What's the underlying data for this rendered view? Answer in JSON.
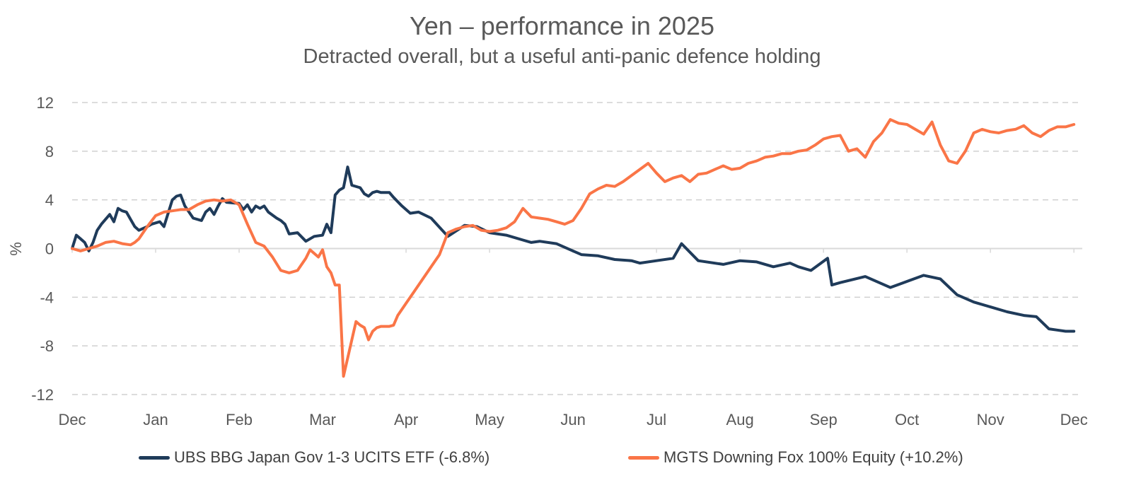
{
  "colors": {
    "ubs": "#1f3b5a",
    "mgts": "#fa7547",
    "grid": "#d0d0d0",
    "text": "#595959"
  },
  "chart_data": {
    "type": "line",
    "title": "Yen – performance in 2025",
    "subtitle": "Detracted overall, but a useful anti-panic defence holding",
    "xlabel": "",
    "ylabel": "%",
    "ylim": [
      -12,
      12
    ],
    "yticks": [
      "12",
      "8",
      "4",
      "0",
      "-4",
      "-8",
      "-12"
    ],
    "ytick_values": [
      12,
      8,
      4,
      0,
      -4,
      -8,
      -12
    ],
    "xlim": [
      0,
      12.1
    ],
    "xticks": [
      "Dec",
      "Jan",
      "Feb",
      "Mar",
      "Apr",
      "May",
      "Jun",
      "Jul",
      "Aug",
      "Sep",
      "Oct",
      "Nov",
      "Dec"
    ],
    "series": [
      {
        "name": "UBS BBG Japan Gov 1-3 UCITS ETF (-6.8%)",
        "color": "#1f3b5a",
        "x": [
          0,
          0.05,
          0.1,
          0.15,
          0.2,
          0.25,
          0.3,
          0.35,
          0.45,
          0.5,
          0.55,
          0.6,
          0.65,
          0.7,
          0.75,
          0.8,
          0.9,
          0.95,
          1.05,
          1.1,
          1.2,
          1.25,
          1.3,
          1.35,
          1.4,
          1.45,
          1.55,
          1.6,
          1.65,
          1.7,
          1.75,
          1.8,
          1.85,
          2.0,
          2.05,
          2.1,
          2.15,
          2.2,
          2.25,
          2.3,
          2.35,
          2.45,
          2.5,
          2.55,
          2.6,
          2.7,
          2.8,
          2.9,
          3.0,
          3.05,
          3.1,
          3.15,
          3.2,
          3.25,
          3.3,
          3.35,
          3.45,
          3.5,
          3.55,
          3.6,
          3.65,
          3.7,
          3.8,
          3.85,
          3.95,
          4.05,
          4.15,
          4.3,
          4.5,
          4.7,
          4.85,
          5.0,
          5.2,
          5.4,
          5.5,
          5.6,
          5.8,
          6.0,
          6.1,
          6.3,
          6.5,
          6.7,
          6.8,
          7.0,
          7.2,
          7.3,
          7.5,
          7.8,
          8.0,
          8.2,
          8.4,
          8.6,
          8.7,
          8.85,
          9.05,
          9.1,
          9.2,
          9.5,
          9.8,
          10.0,
          10.2,
          10.4,
          10.6,
          10.8,
          11.0,
          11.2,
          11.4,
          11.55,
          11.7,
          11.8,
          11.9,
          12.0
        ],
        "values": [
          0,
          1.1,
          0.8,
          0.5,
          -0.2,
          0.5,
          1.5,
          2.0,
          2.8,
          2.2,
          3.3,
          3.1,
          3.0,
          2.4,
          1.8,
          1.5,
          1.8,
          2.0,
          2.2,
          1.8,
          4.0,
          4.3,
          4.4,
          3.5,
          3.0,
          2.5,
          2.3,
          3.0,
          3.3,
          2.8,
          3.5,
          4.1,
          3.8,
          3.7,
          3.2,
          3.6,
          3.0,
          3.5,
          3.3,
          3.5,
          3.0,
          2.5,
          2.3,
          2.0,
          1.2,
          1.3,
          0.6,
          1.0,
          1.1,
          2.0,
          1.3,
          4.4,
          4.8,
          5.0,
          6.7,
          5.2,
          5.0,
          4.5,
          4.3,
          4.6,
          4.7,
          4.6,
          4.6,
          4.2,
          3.5,
          2.9,
          3.0,
          2.5,
          1.0,
          1.9,
          1.8,
          1.3,
          1.1,
          0.7,
          0.5,
          0.6,
          0.4,
          -0.2,
          -0.5,
          -0.6,
          -0.9,
          -1.0,
          -1.2,
          -1.0,
          -0.8,
          0.4,
          -1.0,
          -1.3,
          -1.0,
          -1.1,
          -1.5,
          -1.2,
          -1.5,
          -1.8,
          -0.8,
          -3.0,
          -2.8,
          -2.3,
          -3.2,
          -2.7,
          -2.2,
          -2.5,
          -3.8,
          -4.4,
          -4.8,
          -5.2,
          -5.5,
          -5.6,
          -6.6,
          -6.7,
          -6.8,
          -6.8
        ]
      },
      {
        "name": "MGTS Downing Fox 100% Equity (+10.2%)",
        "color": "#fa7547",
        "x": [
          0,
          0.1,
          0.2,
          0.3,
          0.4,
          0.5,
          0.6,
          0.7,
          0.75,
          0.8,
          0.9,
          1.0,
          1.1,
          1.2,
          1.3,
          1.4,
          1.5,
          1.6,
          1.7,
          1.8,
          1.9,
          2.0,
          2.1,
          2.2,
          2.3,
          2.4,
          2.5,
          2.6,
          2.7,
          2.8,
          2.85,
          2.95,
          3.0,
          3.05,
          3.1,
          3.15,
          3.2,
          3.25,
          3.3,
          3.35,
          3.4,
          3.45,
          3.5,
          3.55,
          3.6,
          3.65,
          3.7,
          3.75,
          3.8,
          3.85,
          3.9,
          3.95,
          4.0,
          4.1,
          4.2,
          4.3,
          4.4,
          4.5,
          4.6,
          4.7,
          4.8,
          4.9,
          5.0,
          5.1,
          5.2,
          5.3,
          5.4,
          5.5,
          5.6,
          5.7,
          5.8,
          5.9,
          6.0,
          6.1,
          6.2,
          6.3,
          6.4,
          6.5,
          6.6,
          6.7,
          6.8,
          6.9,
          7.0,
          7.1,
          7.2,
          7.3,
          7.4,
          7.5,
          7.6,
          7.7,
          7.8,
          7.9,
          8.0,
          8.1,
          8.2,
          8.3,
          8.4,
          8.5,
          8.6,
          8.7,
          8.8,
          8.9,
          9.0,
          9.1,
          9.2,
          9.3,
          9.4,
          9.5,
          9.6,
          9.7,
          9.8,
          9.9,
          10.0,
          10.1,
          10.2,
          10.3,
          10.4,
          10.5,
          10.6,
          10.7,
          10.8,
          10.9,
          11.0,
          11.1,
          11.2,
          11.3,
          11.4,
          11.5,
          11.6,
          11.7,
          11.8,
          11.9,
          12.0
        ],
        "values": [
          0,
          -0.2,
          0,
          0.2,
          0.5,
          0.6,
          0.4,
          0.3,
          0.5,
          0.8,
          1.8,
          2.7,
          3.0,
          3.1,
          3.2,
          3.2,
          3.6,
          3.9,
          4.0,
          3.9,
          4.0,
          3.6,
          2.0,
          0.5,
          0.2,
          -0.7,
          -1.8,
          -2.0,
          -1.8,
          -0.8,
          -0.1,
          -0.7,
          -0.1,
          -1.5,
          -2.0,
          -3.0,
          -3.0,
          -10.5,
          -9.0,
          -7.5,
          -6.0,
          -6.3,
          -6.5,
          -7.5,
          -6.8,
          -6.5,
          -6.4,
          -6.4,
          -6.4,
          -6.3,
          -5.5,
          -5.0,
          -4.5,
          -3.5,
          -2.5,
          -1.5,
          -0.5,
          1.3,
          1.6,
          1.8,
          1.9,
          1.5,
          1.4,
          1.5,
          1.7,
          2.2,
          3.3,
          2.6,
          2.5,
          2.4,
          2.2,
          2.0,
          2.3,
          3.3,
          4.5,
          4.9,
          5.2,
          5.1,
          5.5,
          6.0,
          6.5,
          7.0,
          6.2,
          5.5,
          5.8,
          6.0,
          5.5,
          6.1,
          6.2,
          6.5,
          6.8,
          6.5,
          6.6,
          7.0,
          7.2,
          7.5,
          7.6,
          7.8,
          7.8,
          8.0,
          8.1,
          8.5,
          9.0,
          9.2,
          9.3,
          8.0,
          8.2,
          7.5,
          8.8,
          9.5,
          10.6,
          10.3,
          10.2,
          9.8,
          9.4,
          10.4,
          8.5,
          7.2,
          7.0,
          8.0,
          9.5,
          9.8,
          9.6,
          9.5,
          9.7,
          9.8,
          10.1,
          9.5,
          9.2,
          9.7,
          10.0,
          10.0,
          10.2
        ]
      }
    ],
    "legend_position": "bottom"
  }
}
